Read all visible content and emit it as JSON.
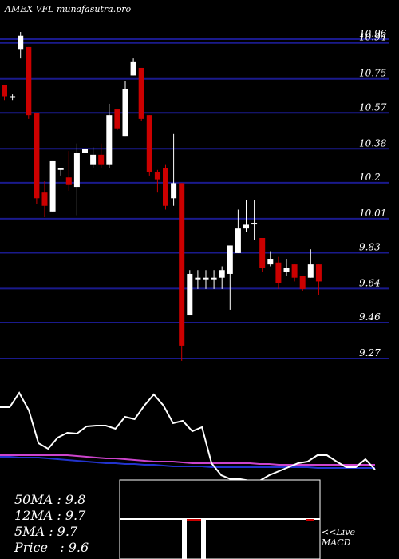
{
  "header": {
    "title": "AMEX VFL munafasutra.pro"
  },
  "legend": {
    "ma50": "50MA : 9.8",
    "ma12": "12MA : 9.7",
    "ma5": "5MA : 9.7",
    "price": "Price   : 9.6"
  },
  "live_label": {
    "line1": "<<Live",
    "line2": "MACD"
  },
  "colors": {
    "up": "#ffffff",
    "down": "#cc0000",
    "grid": "#1a1a8c",
    "ma_slow": "#cc44cc",
    "ma_fast": "#2233cc"
  },
  "chart_data": {
    "type": "candlestick",
    "y_ticks": [
      10.96,
      10.94,
      10.75,
      10.57,
      10.38,
      10.2,
      10.01,
      9.83,
      9.64,
      9.46,
      9.27
    ],
    "ylim": [
      9.27,
      10.96
    ],
    "candles": [
      {
        "o": 10.68,
        "c": 10.62,
        "h": 10.68,
        "l": 10.6
      },
      {
        "o": 10.62,
        "c": 10.62,
        "h": 10.63,
        "l": 10.6
      },
      {
        "o": 10.87,
        "c": 10.94,
        "h": 10.96,
        "l": 10.82
      },
      {
        "o": 10.88,
        "c": 10.52,
        "h": 10.88,
        "l": 10.5
      },
      {
        "o": 10.53,
        "c": 10.08,
        "h": 10.53,
        "l": 10.05
      },
      {
        "o": 10.11,
        "c": 10.04,
        "h": 10.17,
        "l": 9.98
      },
      {
        "o": 10.01,
        "c": 10.28,
        "h": 10.28,
        "l": 10.01
      },
      {
        "o": 10.23,
        "c": 10.24,
        "h": 10.24,
        "l": 10.2
      },
      {
        "o": 10.19,
        "c": 10.15,
        "h": 10.33,
        "l": 10.12
      },
      {
        "o": 10.14,
        "c": 10.32,
        "h": 10.37,
        "l": 9.99
      },
      {
        "o": 10.32,
        "c": 10.34,
        "h": 10.37,
        "l": 10.31
      },
      {
        "o": 10.26,
        "c": 10.31,
        "h": 10.35,
        "l": 10.24
      },
      {
        "o": 10.31,
        "c": 10.26,
        "h": 10.37,
        "l": 10.24
      },
      {
        "o": 10.26,
        "c": 10.52,
        "h": 10.58,
        "l": 10.24
      },
      {
        "o": 10.55,
        "c": 10.45,
        "h": 10.55,
        "l": 10.44
      },
      {
        "o": 10.41,
        "c": 10.66,
        "h": 10.7,
        "l": 10.41
      },
      {
        "o": 10.73,
        "c": 10.8,
        "h": 10.82,
        "l": 10.73
      },
      {
        "o": 10.77,
        "c": 10.5,
        "h": 10.77,
        "l": 10.49
      },
      {
        "o": 10.52,
        "c": 10.22,
        "h": 10.52,
        "l": 10.2
      },
      {
        "o": 10.22,
        "c": 10.18,
        "h": 10.23,
        "l": 10.11
      },
      {
        "o": 10.24,
        "c": 10.04,
        "h": 10.26,
        "l": 10.02
      },
      {
        "o": 10.08,
        "c": 10.16,
        "h": 10.42,
        "l": 10.04
      },
      {
        "o": 10.16,
        "c": 9.3,
        "h": 10.16,
        "l": 9.22
      },
      {
        "o": 9.46,
        "c": 9.68,
        "h": 9.7,
        "l": 9.46
      },
      {
        "o": 9.66,
        "c": 9.66,
        "h": 9.7,
        "l": 9.6
      },
      {
        "o": 9.66,
        "c": 9.66,
        "h": 9.7,
        "l": 9.6
      },
      {
        "o": 9.66,
        "c": 9.66,
        "h": 9.7,
        "l": 9.6
      },
      {
        "o": 9.66,
        "c": 9.7,
        "h": 9.72,
        "l": 9.6
      },
      {
        "o": 9.68,
        "c": 9.83,
        "h": 9.83,
        "l": 9.49
      },
      {
        "o": 9.79,
        "c": 9.92,
        "h": 10.02,
        "l": 9.79
      },
      {
        "o": 9.92,
        "c": 9.94,
        "h": 10.07,
        "l": 9.9
      },
      {
        "o": 9.95,
        "c": 9.95,
        "h": 10.07,
        "l": 9.86
      },
      {
        "o": 9.87,
        "c": 9.71,
        "h": 9.87,
        "l": 9.69
      },
      {
        "o": 9.73,
        "c": 9.76,
        "h": 9.8,
        "l": 9.72
      },
      {
        "o": 9.74,
        "c": 9.63,
        "h": 9.77,
        "l": 9.6
      },
      {
        "o": 9.69,
        "c": 9.71,
        "h": 9.76,
        "l": 9.67
      },
      {
        "o": 9.73,
        "c": 9.66,
        "h": 9.73,
        "l": 9.64
      },
      {
        "o": 9.67,
        "c": 9.6,
        "h": 9.67,
        "l": 9.59
      },
      {
        "o": 9.66,
        "c": 9.73,
        "h": 9.81,
        "l": 9.66
      },
      {
        "o": 9.73,
        "c": 9.64,
        "h": 9.73,
        "l": 9.57
      }
    ],
    "macd_line": [
      0.7,
      0.7,
      0.88,
      0.66,
      0.25,
      0.18,
      0.32,
      0.38,
      0.37,
      0.46,
      0.47,
      0.47,
      0.43,
      0.58,
      0.55,
      0.72,
      0.86,
      0.72,
      0.5,
      0.53,
      0.4,
      0.45,
      0.0,
      -0.15,
      -0.2,
      -0.2,
      -0.22,
      -0.22,
      -0.15,
      -0.1,
      -0.05,
      0.0,
      0.02,
      0.1,
      0.1,
      0.02,
      -0.05,
      -0.05,
      0.05,
      -0.08
    ],
    "ma_slow": [
      0.1,
      0.1,
      0.1,
      0.1,
      0.1,
      0.1,
      0.1,
      0.1,
      0.09,
      0.08,
      0.07,
      0.06,
      0.06,
      0.05,
      0.04,
      0.03,
      0.02,
      0.02,
      0.02,
      0.01,
      0.0,
      0.0,
      0.0,
      0.0,
      0.0,
      0.0,
      0.0,
      -0.01,
      -0.01,
      -0.02,
      -0.02,
      -0.02,
      -0.02,
      -0.02,
      -0.02,
      -0.02,
      -0.02,
      -0.02,
      -0.02,
      -0.02
    ],
    "ma_fast": [
      0.08,
      0.08,
      0.07,
      0.07,
      0.07,
      0.06,
      0.05,
      0.04,
      0.03,
      0.02,
      0.01,
      0.0,
      0.0,
      -0.01,
      -0.01,
      -0.02,
      -0.02,
      -0.03,
      -0.04,
      -0.04,
      -0.04,
      -0.04,
      -0.05,
      -0.05,
      -0.05,
      -0.05,
      -0.05,
      -0.05,
      -0.05,
      -0.05,
      -0.05,
      -0.05,
      -0.05,
      -0.06,
      -0.06,
      -0.06,
      -0.06,
      -0.06,
      -0.06,
      -0.06
    ],
    "hist": [
      0,
      0,
      0,
      0,
      0,
      0,
      0,
      0,
      0,
      0,
      0,
      0,
      0,
      0,
      0,
      0,
      0,
      0,
      0,
      0,
      0,
      0,
      0,
      0,
      0,
      0,
      0,
      0,
      0,
      0,
      0,
      0,
      0,
      0,
      0,
      0,
      0,
      0,
      0,
      0
    ]
  }
}
